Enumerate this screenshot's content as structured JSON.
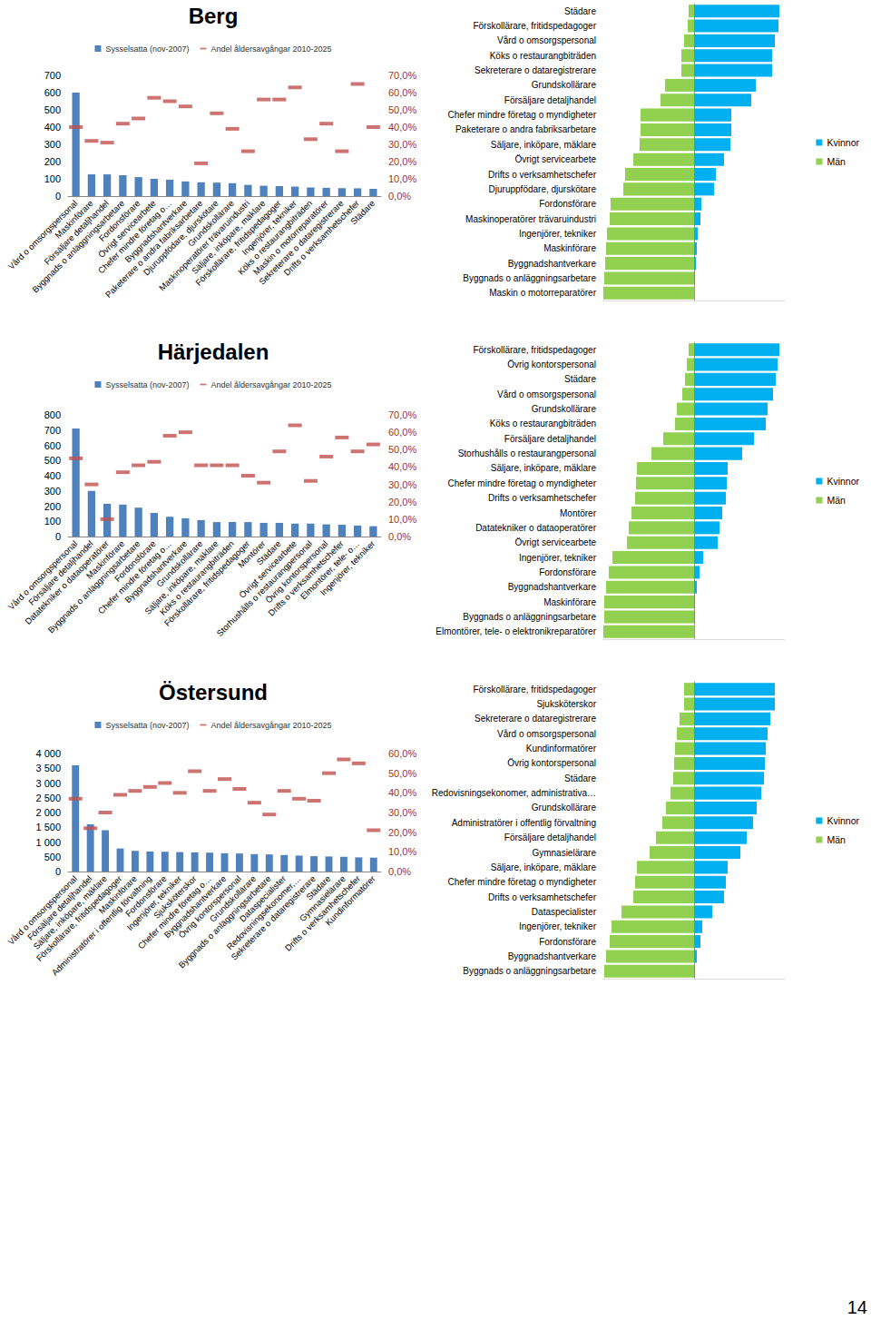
{
  "page_number": "14",
  "chart_data": [
    {
      "type": "bar",
      "title": "Berg",
      "categories": [
        "Vård o omsorgspersonal",
        "Maskinförare",
        "Försäljare detaljhandel",
        "Byggnads o anläggningsarbetare",
        "Fordonsförare",
        "Övrigt servicearbete",
        "Chefer mindre företag o…",
        "Byggnadshantverkare",
        "Paketerare o andra fabriksarbetare",
        "Djuruppfödare, djurskötare",
        "Grundskollärare",
        "Maskinoperatörer trävaruindustri",
        "Säljare, inköpare, mäklare",
        "Förskollärare, fritidspedagoger",
        "Ingenjörer, tekniker",
        "Köks o restaurangbiträden",
        "Maskin o motorreparatörer",
        "Sekreterare o dataregistrerare",
        "Drifts o verksamhetschefer",
        "Städare"
      ],
      "series": [
        {
          "name": "Sysselsatta (nov-2007)",
          "type": "bar",
          "color": "#4f81bd",
          "values": [
            600,
            126,
            126,
            121,
            110,
            100,
            95,
            85,
            80,
            78,
            75,
            65,
            60,
            58,
            55,
            50,
            48,
            46,
            45,
            42
          ]
        },
        {
          "name": "Andel åldersavgångar 2010-2025",
          "type": "scatter",
          "marker": "dash",
          "color": "#c0504d",
          "axis": "y2",
          "values": [
            40,
            32,
            31,
            42,
            45,
            57,
            55,
            52,
            19,
            48,
            39,
            26,
            56,
            56,
            63,
            33,
            42,
            26,
            65,
            40
          ]
        }
      ],
      "ylim": [
        0,
        700
      ],
      "yticks": [
        0,
        100,
        200,
        300,
        400,
        500,
        600,
        700
      ],
      "y2lim": [
        0,
        70
      ],
      "y2ticks": [
        {
          "value": 0,
          "label": "0,0%"
        },
        {
          "value": 10,
          "label": "10,0%"
        },
        {
          "value": 20,
          "label": "20,0%"
        },
        {
          "value": 30,
          "label": "30,0%"
        },
        {
          "value": 40,
          "label": "40,0%"
        },
        {
          "value": 50,
          "label": "50,0%"
        },
        {
          "value": 60,
          "label": "60,0%"
        },
        {
          "value": 70,
          "label": "70,0%"
        }
      ],
      "grid": false,
      "legend": "top"
    },
    {
      "type": "bar",
      "orientation": "horizontal",
      "categories": [
        "Städare",
        "Förskollärare, fritidspedagoger",
        "Vård o omsorgspersonal",
        "Köks o restaurangbiträden",
        "Sekreterare o dataregistrerare",
        "Grundskollärare",
        "Försäljare detaljhandel",
        "Chefer mindre företag o myndigheter",
        "Paketerare o andra fabriksarbetare",
        "Säljare, inköpare, mäklare",
        "Övrigt servicearbete",
        "Drifts o verksamhetschefer",
        "Djuruppfödare, djurskötare",
        "Fordonsförare",
        "Maskinoperatörer trävaruindustri",
        "Ingenjörer, tekniker",
        "Maskinförare",
        "Byggnadshantverkare",
        "Byggnads o anläggningsarbetare",
        "Maskin o motorreparatörer"
      ],
      "series": [
        {
          "name": "Kvinnor",
          "color": "#00b0f0",
          "values": [
            94,
            93,
            89,
            86,
            86,
            68,
            63,
            41,
            41,
            40,
            33,
            24,
            22,
            8,
            7,
            4,
            3,
            2,
            1,
            0
          ]
        },
        {
          "name": "Män",
          "color": "#92d050",
          "values": [
            -6,
            -7,
            -11,
            -14,
            -14,
            -32,
            -37,
            -59,
            -59,
            -60,
            -67,
            -76,
            -78,
            -92,
            -93,
            -96,
            -97,
            -98,
            -99,
            -100
          ]
        }
      ],
      "xlim": [
        -100,
        100
      ],
      "tick_labels": "y",
      "grid": false,
      "legend": "right"
    },
    {
      "type": "bar",
      "title": "Härjedalen",
      "categories": [
        "Vård o omsorgspersonal",
        "Försäljare detaljhandel",
        "Datatekniker o dataoperatörer",
        "Maskinförare",
        "Byggnads o anläggningsarbetare",
        "Fordonsförare",
        "Chefer mindre företag o…",
        "Byggnadshantverkare",
        "Grundskollärare",
        "Säljare, inköpare, mäklare",
        "Köks o restaurangbiträden",
        "Förskollärare, fritidspedagoger",
        "Montörer",
        "Städare",
        "Övrigt servicearbete",
        "Storhushålls o restaurangpersonal",
        "Övrig kontorspersonal",
        "Drifts o verksamhetschefer",
        "Elmontörer, tele- o…",
        "Ingenjörer, tekniker"
      ],
      "series": [
        {
          "name": "Sysselsatta (nov-2007)",
          "type": "bar",
          "color": "#4f81bd",
          "values": [
            710,
            300,
            215,
            210,
            190,
            155,
            130,
            120,
            108,
            95,
            95,
            95,
            90,
            90,
            85,
            85,
            80,
            78,
            72,
            68
          ]
        },
        {
          "name": "Andel åldersavgångar 2010-2025",
          "type": "scatter",
          "marker": "dash",
          "color": "#c0504d",
          "axis": "y2",
          "values": [
            45,
            30,
            10,
            37,
            41,
            43,
            58,
            60,
            41,
            41,
            41,
            35,
            31,
            49,
            64,
            32,
            46,
            57,
            49,
            53
          ]
        }
      ],
      "ylim": [
        0,
        800
      ],
      "yticks": [
        0,
        100,
        200,
        300,
        400,
        500,
        600,
        700,
        800
      ],
      "y2lim": [
        0,
        70
      ],
      "y2ticks": [
        {
          "value": 0,
          "label": "0,0%"
        },
        {
          "value": 10,
          "label": "10,0%"
        },
        {
          "value": 20,
          "label": "20,0%"
        },
        {
          "value": 30,
          "label": "30,0%"
        },
        {
          "value": 40,
          "label": "40,0%"
        },
        {
          "value": 50,
          "label": "50,0%"
        },
        {
          "value": 60,
          "label": "60,0%"
        },
        {
          "value": 70,
          "label": "70,0%"
        }
      ],
      "grid": false,
      "legend": "top"
    },
    {
      "type": "bar",
      "orientation": "horizontal",
      "categories": [
        "Förskollärare, fritidspedagoger",
        "Övrig kontorspersonal",
        "Städare",
        "Vård o omsorgspersonal",
        "Grundskollärare",
        "Köks o restaurangbiträden",
        "Försäljare detaljhandel",
        "Storhushålls o restaurangpersonal",
        "Säljare, inköpare, mäklare",
        "Chefer mindre företag o myndigheter",
        "Drifts o verksamhetschefer",
        "Montörer",
        "Datatekniker o dataoperatörer",
        "Övrigt servicearbete",
        "Ingenjörer, tekniker",
        "Fordonsförare",
        "Byggnadshantverkare",
        "Maskinförare",
        "Byggnads o anläggningsarbetare",
        "Elmontörer, tele- o elektronikreparatörer"
      ],
      "series": [
        {
          "name": "Kvinnor",
          "color": "#00b0f0",
          "values": [
            94,
            92,
            90,
            87,
            81,
            79,
            66,
            53,
            37,
            36,
            35,
            31,
            28,
            26,
            10,
            6,
            3,
            1,
            1,
            0
          ]
        },
        {
          "name": "Män",
          "color": "#92d050",
          "values": [
            -6,
            -8,
            -10,
            -13,
            -19,
            -21,
            -34,
            -47,
            -63,
            -64,
            -65,
            -69,
            -72,
            -74,
            -90,
            -94,
            -97,
            -99,
            -99,
            -100
          ]
        }
      ],
      "xlim": [
        -100,
        100
      ],
      "tick_labels": "y",
      "grid": false,
      "legend": "right"
    },
    {
      "type": "bar",
      "title": "Östersund",
      "categories": [
        "Vård o omsorgspersonal",
        "Försäljare detaljhandel",
        "Säljare, inköpare, mäklare",
        "Förskollärare, fritidspedagoger",
        "Maskinförare",
        "Administratörer i offentlig förvaltning",
        "Fordonsförare",
        "Ingenjörer, tekniker",
        "Sjuksköterskor",
        "Chefer mindre företag o…",
        "Byggnadshantverkare",
        "Övrig kontorspersonal",
        "Grundskollärare",
        "Byggnads o anläggningsarbetare",
        "Dataspecialister",
        "Redovisningsekonomer,…",
        "Sekreterare o dataregistrerare",
        "Städare",
        "Gymnasielärare",
        "Drifts o verksamhetschefer",
        "Kundinformatörer"
      ],
      "series": [
        {
          "name": "Sysselsatta (nov-2007)",
          "type": "bar",
          "color": "#4f81bd",
          "values": [
            3600,
            1600,
            1400,
            780,
            700,
            680,
            670,
            660,
            650,
            640,
            620,
            610,
            590,
            580,
            560,
            540,
            520,
            510,
            500,
            480,
            470
          ]
        },
        {
          "name": "Andel åldersavgångar 2010-2025",
          "type": "scatter",
          "marker": "dash",
          "color": "#c0504d",
          "axis": "y2",
          "values": [
            37,
            22,
            30,
            39,
            41,
            43,
            45,
            40,
            51,
            41,
            47,
            42,
            35,
            29,
            41,
            37,
            36,
            50,
            57,
            55,
            21
          ]
        }
      ],
      "ylim": [
        0,
        4000
      ],
      "yticks": [
        0,
        500,
        {
          "value": 1000,
          "label": "1 000"
        },
        {
          "value": 1500,
          "label": "1 500"
        },
        {
          "value": 2000,
          "label": "2 000"
        },
        {
          "value": 2500,
          "label": "2 500"
        },
        {
          "value": 3000,
          "label": "3 000"
        },
        {
          "value": 3500,
          "label": "3 500"
        },
        {
          "value": 4000,
          "label": "4 000"
        }
      ],
      "y2lim": [
        0,
        60
      ],
      "y2ticks": [
        {
          "value": 0,
          "label": "0,0%"
        },
        {
          "value": 10,
          "label": "10,0%"
        },
        {
          "value": 20,
          "label": "20,0%"
        },
        {
          "value": 30,
          "label": "30,0%"
        },
        {
          "value": 40,
          "label": "40,0%"
        },
        {
          "value": 50,
          "label": "50,0%"
        },
        {
          "value": 60,
          "label": "60,0%"
        }
      ],
      "grid": false,
      "legend": "top"
    },
    {
      "type": "bar",
      "orientation": "horizontal",
      "categories": [
        "Förskollärare, fritidspedagoger",
        "Sjuksköterskor",
        "Sekreterare o dataregistrerare",
        "Vård o omsorgspersonal",
        "Kundinformatörer",
        "Övrig kontorspersonal",
        "Städare",
        "Redovisningsekonomer, administrativa…",
        "Grundskollärare",
        "Administratörer i offentlig förvaltning",
        "Försäljare detaljhandel",
        "Gymnasielärare",
        "Säljare, inköpare, mäklare",
        "Chefer mindre företag o myndigheter",
        "Drifts o verksamhetschefer",
        "Dataspecialister",
        "Ingenjörer, tekniker",
        "Fordonsförare",
        "Byggnadshantverkare",
        "Byggnads o anläggningsarbetare"
      ],
      "series": [
        {
          "name": "Kvinnor",
          "color": "#00b0f0",
          "values": [
            89,
            89,
            84,
            81,
            79,
            78,
            77,
            74,
            69,
            65,
            58,
            51,
            37,
            35,
            33,
            20,
            9,
            7,
            3,
            1
          ]
        },
        {
          "name": "Män",
          "color": "#92d050",
          "values": [
            -11,
            -11,
            -16,
            -19,
            -21,
            -22,
            -23,
            -26,
            -31,
            -35,
            -42,
            -49,
            -63,
            -65,
            -67,
            -80,
            -91,
            -93,
            -97,
            -99
          ]
        }
      ],
      "xlim": [
        -100,
        100
      ],
      "tick_labels": "y",
      "grid": false,
      "legend": "right"
    }
  ]
}
